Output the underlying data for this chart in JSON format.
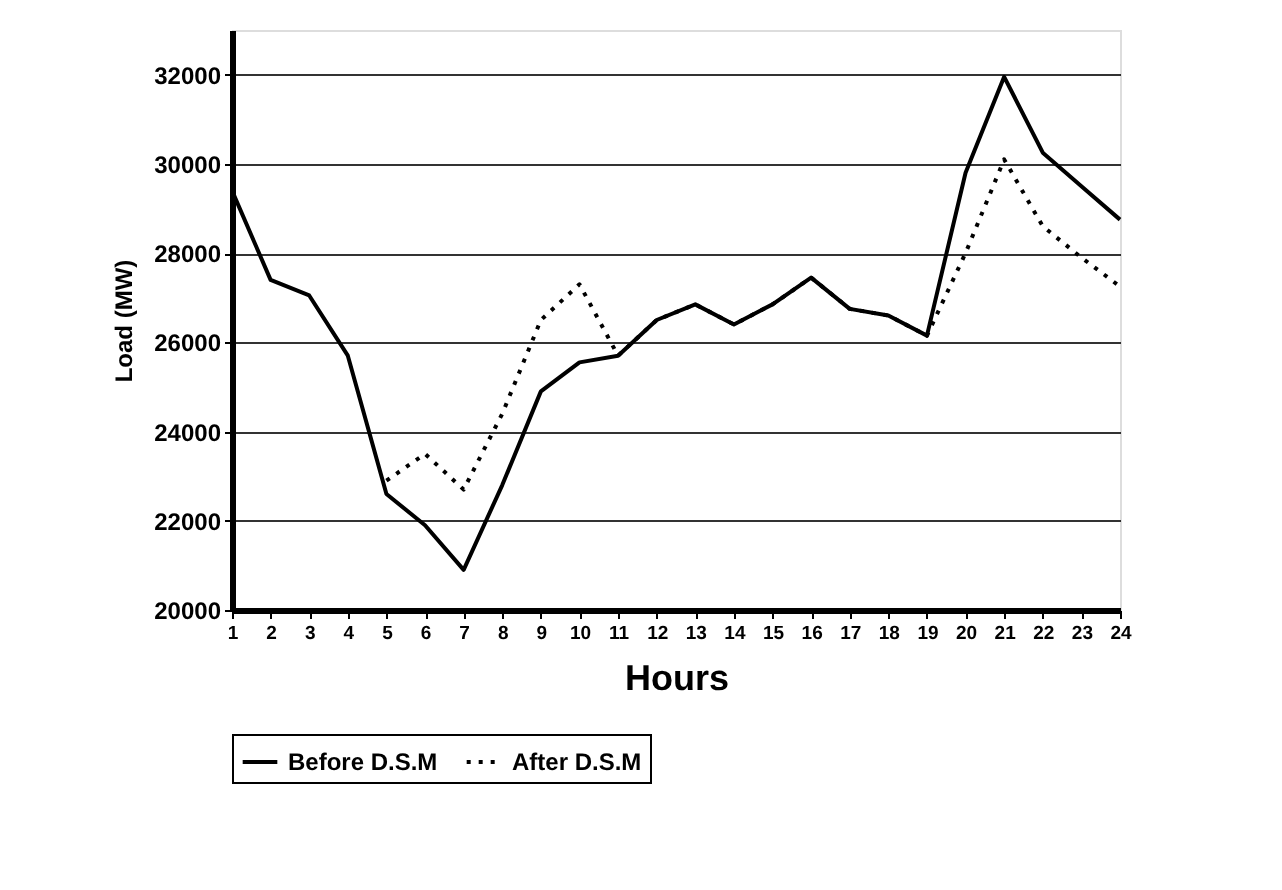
{
  "chart_data": {
    "type": "line",
    "xlabel": "Hours",
    "ylabel": "Load (MW)",
    "x": [
      1,
      2,
      3,
      4,
      5,
      6,
      7,
      8,
      9,
      10,
      11,
      12,
      13,
      14,
      15,
      16,
      17,
      18,
      19,
      20,
      21,
      22,
      23,
      24
    ],
    "xlim": [
      1,
      24
    ],
    "xticks": [
      1,
      2,
      3,
      4,
      5,
      6,
      7,
      8,
      9,
      10,
      11,
      12,
      13,
      14,
      15,
      16,
      17,
      18,
      19,
      20,
      21,
      22,
      23,
      24
    ],
    "series": [
      {
        "name": "Before D.S.M",
        "color": "#000000",
        "line_style": "solid",
        "values": [
          29400,
          27400,
          27050,
          25700,
          22600,
          21900,
          20900,
          22800,
          24900,
          25550,
          25700,
          26500,
          26850,
          26400,
          26850,
          27450,
          26750,
          26600,
          26150,
          29800,
          31950,
          30250,
          29500,
          28750
        ]
      },
      {
        "name": "After D.S.M",
        "color": "#000000",
        "line_style": "dotted",
        "values": [
          null,
          null,
          null,
          null,
          22900,
          23500,
          22700,
          24400,
          26500,
          27300,
          25700,
          26500,
          26850,
          26400,
          26850,
          27450,
          26750,
          26600,
          26150,
          28000,
          30100,
          28600,
          27900,
          27250
        ]
      }
    ],
    "ylim": [
      20000,
      33000
    ],
    "yticks": [
      20000,
      22000,
      24000,
      26000,
      28000,
      30000,
      32000
    ],
    "grid": "y",
    "legend": "bottom",
    "marker": "none"
  }
}
